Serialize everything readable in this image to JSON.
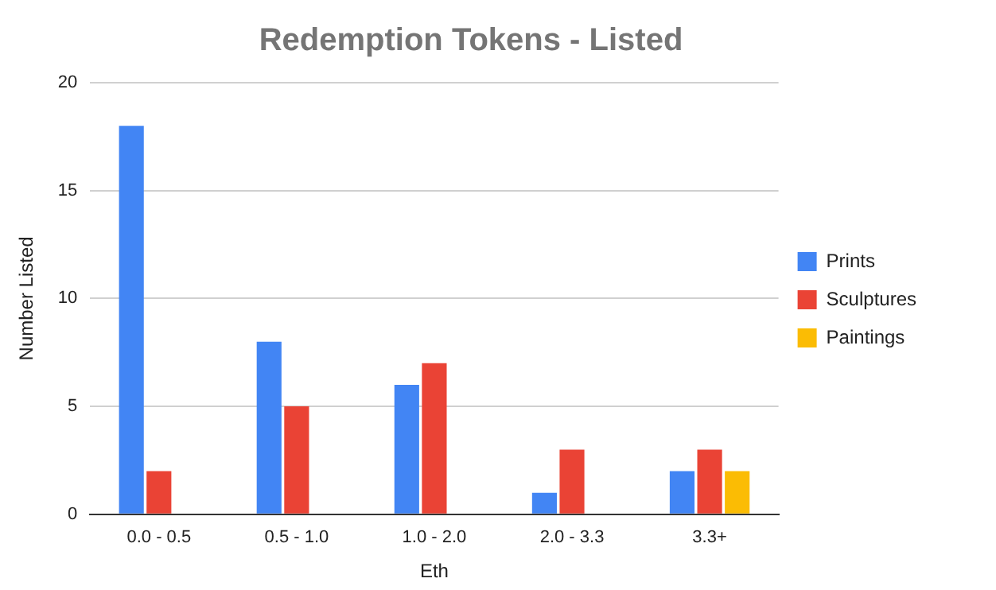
{
  "chart_data": {
    "type": "bar",
    "title": "Redemption Tokens - Listed",
    "xlabel": "Eth",
    "ylabel": "Number Listed",
    "categories": [
      "0.0 - 0.5",
      "0.5 - 1.0",
      "1.0 - 2.0",
      "2.0 - 3.3",
      "3.3+"
    ],
    "series": [
      {
        "name": "Prints",
        "color": "#4285f4",
        "values": [
          18,
          8,
          6,
          1,
          2
        ]
      },
      {
        "name": "Sculptures",
        "color": "#ea4335",
        "values": [
          2,
          5,
          7,
          3,
          3
        ]
      },
      {
        "name": "Paintings",
        "color": "#fbbc04",
        "values": [
          0,
          0,
          0,
          0,
          2
        ]
      }
    ],
    "ylim": [
      0,
      20
    ],
    "yticks": [
      0,
      5,
      10,
      15,
      20
    ],
    "grid": "y",
    "legend": "right"
  }
}
